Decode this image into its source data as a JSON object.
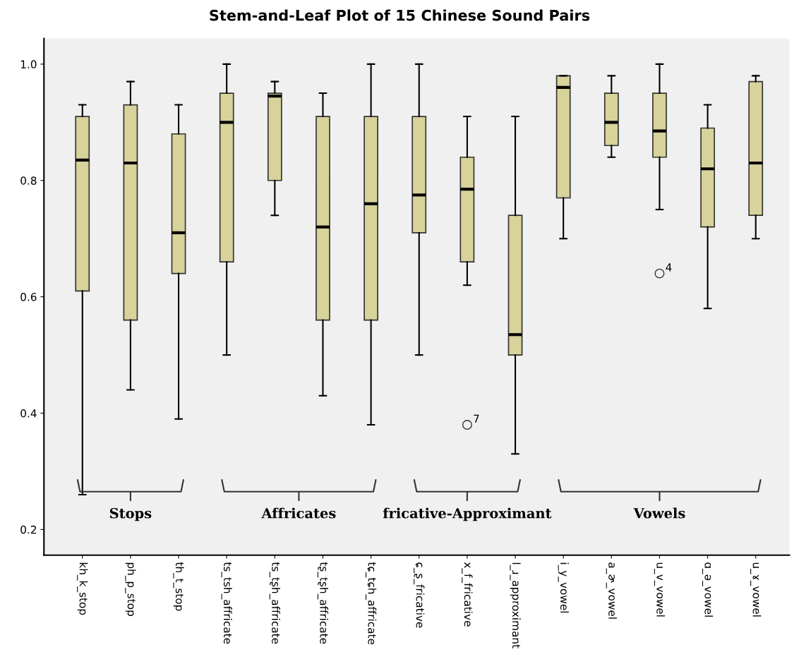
{
  "chart_data": {
    "type": "box",
    "title": "Stem-and-Leaf Plot of 15 Chinese Sound Pairs",
    "categories": [
      "kh_k_stop",
      "ph_p_stop",
      "th_t_stop",
      "ts_tsh_affricate",
      "ts_tʂh_affricate",
      "tʂ_tʂh_affricate",
      "tɕ_tɕh_affricate",
      "ɕ_ʂ_fricative",
      "x_f_fricative",
      "l_ɹ_approximant",
      "i_y_vowel",
      "a_ɚ_vowel",
      "u_v_vowel",
      "ɑ_ə_vowel",
      "u_ɤ_vowel"
    ],
    "color": "#d8d29b",
    "boxes": [
      {
        "low": 0.26,
        "q1": 0.61,
        "median": 0.835,
        "q3": 0.91,
        "high": 0.93
      },
      {
        "low": 0.44,
        "q1": 0.56,
        "median": 0.83,
        "q3": 0.93,
        "high": 0.97
      },
      {
        "low": 0.39,
        "q1": 0.64,
        "median": 0.71,
        "q3": 0.88,
        "high": 0.93
      },
      {
        "low": 0.5,
        "q1": 0.66,
        "median": 0.9,
        "q3": 0.95,
        "high": 1.0
      },
      {
        "low": 0.74,
        "q1": 0.8,
        "median": 0.945,
        "q3": 0.95,
        "high": 0.97
      },
      {
        "low": 0.43,
        "q1": 0.56,
        "median": 0.72,
        "q3": 0.91,
        "high": 0.95
      },
      {
        "low": 0.38,
        "q1": 0.56,
        "median": 0.76,
        "q3": 0.91,
        "high": 1.0
      },
      {
        "low": 0.5,
        "q1": 0.71,
        "median": 0.775,
        "q3": 0.91,
        "high": 1.0
      },
      {
        "low": 0.62,
        "q1": 0.66,
        "median": 0.785,
        "q3": 0.84,
        "high": 0.91,
        "outliers": [
          0.38
        ]
      },
      {
        "low": 0.33,
        "q1": 0.5,
        "median": 0.535,
        "q3": 0.74,
        "high": 0.91
      },
      {
        "low": 0.7,
        "q1": 0.77,
        "median": 0.96,
        "q3": 0.98,
        "high": 0.98
      },
      {
        "low": 0.84,
        "q1": 0.86,
        "median": 0.9,
        "q3": 0.95,
        "high": 0.98
      },
      {
        "low": 0.75,
        "q1": 0.84,
        "median": 0.885,
        "q3": 0.95,
        "high": 1.0,
        "outliers": [
          0.64
        ]
      },
      {
        "low": 0.58,
        "q1": 0.72,
        "median": 0.82,
        "q3": 0.89,
        "high": 0.93
      },
      {
        "low": 0.7,
        "q1": 0.74,
        "median": 0.83,
        "q3": 0.97,
        "high": 0.98
      }
    ],
    "ylim": [
      0.156,
      1.044
    ],
    "yticks": [
      0.2,
      0.4,
      0.6,
      0.8,
      {
        "value": 1.0,
        "label": "1.0"
      }
    ],
    "grid": false,
    "annotations": [
      "Stops",
      "Affricates",
      "fricative-Approximant",
      "Vowels",
      "7",
      "4"
    ]
  }
}
